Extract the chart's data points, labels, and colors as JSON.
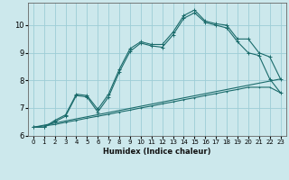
{
  "xlabel": "Humidex (Indice chaleur)",
  "background_color": "#cce8ec",
  "grid_color": "#9dcdd6",
  "line_color": "#1a6b6b",
  "xlim": [
    -0.5,
    23.5
  ],
  "ylim": [
    6,
    10.8
  ],
  "yticks": [
    6,
    7,
    8,
    9,
    10
  ],
  "xticks": [
    0,
    1,
    2,
    3,
    4,
    5,
    6,
    7,
    8,
    9,
    10,
    11,
    12,
    13,
    14,
    15,
    16,
    17,
    18,
    19,
    20,
    21,
    22,
    23
  ],
  "line1_x": [
    0,
    1,
    2,
    3,
    4,
    5,
    6,
    7,
    8,
    9,
    10,
    11,
    12,
    13,
    14,
    15,
    16,
    17,
    18,
    19,
    20,
    21,
    22,
    23
  ],
  "line1_y": [
    6.3,
    6.3,
    6.55,
    6.75,
    7.5,
    7.45,
    6.95,
    7.5,
    8.4,
    9.15,
    9.4,
    9.3,
    9.3,
    9.75,
    10.35,
    10.55,
    10.15,
    10.05,
    10.0,
    9.5,
    9.5,
    9.0,
    8.85,
    8.05
  ],
  "line2_x": [
    0,
    1,
    2,
    3,
    4,
    5,
    6,
    7,
    8,
    9,
    10,
    11,
    12,
    13,
    14,
    15,
    16,
    17,
    18,
    19,
    20,
    21,
    22,
    23
  ],
  "line2_y": [
    6.3,
    6.3,
    6.5,
    6.7,
    7.45,
    7.4,
    6.85,
    7.4,
    8.3,
    9.05,
    9.35,
    9.25,
    9.2,
    9.65,
    10.25,
    10.45,
    10.1,
    10.0,
    9.9,
    9.4,
    9.0,
    8.9,
    8.05,
    7.55
  ],
  "line3_x": [
    0,
    23
  ],
  "line3_y": [
    6.3,
    8.05
  ],
  "line4_x": [
    0,
    1,
    2,
    3,
    4,
    5,
    6,
    7,
    8,
    9,
    10,
    11,
    12,
    13,
    14,
    15,
    16,
    17,
    18,
    19,
    20,
    21,
    22,
    23
  ],
  "line4_y": [
    6.3,
    6.35,
    6.4,
    6.48,
    6.55,
    6.63,
    6.7,
    6.77,
    6.85,
    6.92,
    7.0,
    7.07,
    7.15,
    7.22,
    7.3,
    7.37,
    7.45,
    7.52,
    7.6,
    7.67,
    7.75,
    7.75,
    7.75,
    7.55
  ]
}
